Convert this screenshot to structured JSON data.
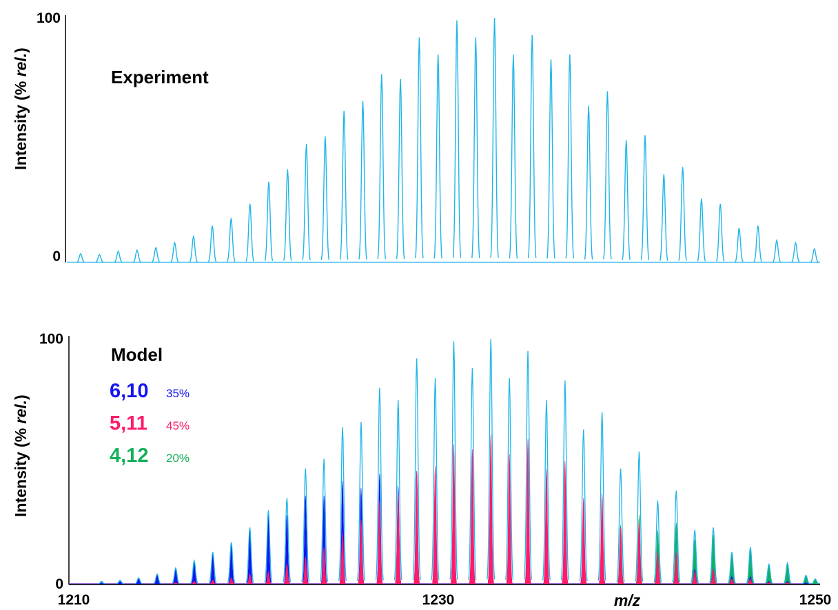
{
  "chart_data": [
    {
      "type": "line",
      "panel_label": "Experiment",
      "ylabel_main": "Intensity (% ",
      "ylabel_italic": "rel.",
      "ylabel_end": ")",
      "y_ticks": [
        "0",
        "100"
      ],
      "xlim": [
        1210,
        1250
      ],
      "ylim": [
        0,
        100
      ],
      "grid": false,
      "series": [
        {
          "color": "#1fb5e8",
          "peaks_mz": [
            1210.5,
            1211.5,
            1212.5,
            1213.5,
            1214.5,
            1215.5,
            1216.5,
            1217.5,
            1218.5,
            1219.5,
            1220.5,
            1221.5,
            1222.5,
            1223.5,
            1224.5,
            1225.5,
            1226.5,
            1227.5,
            1228.5,
            1229.5,
            1230.5,
            1231.5,
            1232.5,
            1233.5,
            1234.5,
            1235.5,
            1236.5,
            1237.5,
            1238.5,
            1239.5,
            1240.5,
            1241.5,
            1242.5,
            1243.5,
            1244.5,
            1245.5,
            1246.5,
            1247.5,
            1248.5,
            1249.5
          ],
          "intensity": [
            3.5,
            3.2,
            4.5,
            5,
            6,
            8,
            10.5,
            15,
            18,
            24,
            33,
            38,
            48.5,
            51.5,
            62,
            66,
            77,
            75,
            92,
            85,
            99,
            92,
            100,
            85,
            93,
            83,
            85,
            64,
            70,
            50,
            52,
            36,
            39,
            26,
            24,
            14,
            15,
            9,
            8,
            5.5
          ]
        }
      ]
    },
    {
      "type": "area",
      "panel_label": "Model",
      "ylabel_main": "Intensity (% ",
      "ylabel_italic": "rel.",
      "ylabel_end": ")",
      "y_ticks": [
        "0",
        "100"
      ],
      "x_ticks": [
        "1210",
        "1230",
        "1250"
      ],
      "xlabel": "m/z",
      "xlim": [
        1210,
        1250
      ],
      "ylim": [
        0,
        100
      ],
      "grid": false,
      "legend": [
        {
          "key": "6,10",
          "pct": "35%",
          "color": "#1515ee"
        },
        {
          "key": "5,11",
          "pct": "45%",
          "color": "#ff1a6b"
        },
        {
          "key": "4,12",
          "pct": "20%",
          "color": "#13b05a"
        }
      ],
      "peaks_mz": [
        1211.5,
        1212.5,
        1213.5,
        1214.5,
        1215.5,
        1216.5,
        1217.5,
        1218.5,
        1219.5,
        1220.5,
        1221.5,
        1222.5,
        1223.5,
        1224.5,
        1225.5,
        1226.5,
        1227.5,
        1228.5,
        1229.5,
        1230.5,
        1231.5,
        1232.5,
        1233.5,
        1234.5,
        1235.5,
        1236.5,
        1237.5,
        1238.5,
        1239.5,
        1240.5,
        1241.5,
        1242.5,
        1243.5,
        1244.5,
        1245.5,
        1246.5,
        1247.5,
        1248.5,
        1249.5,
        1250
      ],
      "series": [
        {
          "name": "total",
          "color": "#1fb5e8",
          "intensity": [
            1,
            1.5,
            2.5,
            4,
            6.5,
            9.5,
            13,
            17,
            23,
            30,
            35,
            47,
            51,
            64,
            66,
            80,
            75,
            92,
            84,
            99,
            88,
            100,
            84,
            95,
            75,
            83,
            63,
            70,
            47,
            54,
            34,
            38,
            22,
            23,
            13,
            15,
            8,
            8.5,
            3.5,
            2
          ]
        },
        {
          "name": "green",
          "color": "#13b05a",
          "intensity": [
            0,
            0,
            0,
            0,
            0,
            0,
            0,
            0,
            0,
            0,
            0,
            0.5,
            1,
            1.5,
            2,
            3,
            4,
            6,
            8,
            10,
            12,
            14,
            15,
            17,
            18,
            21,
            22,
            24,
            24,
            28,
            22,
            25,
            18,
            20,
            12,
            14,
            8,
            8,
            3.5,
            2
          ]
        },
        {
          "name": "blue",
          "color": "#1515ee",
          "intensity": [
            0.5,
            1,
            2,
            3.5,
            6,
            9,
            12,
            16,
            22,
            28,
            28,
            36,
            36,
            42,
            39,
            45,
            40,
            46,
            37,
            47,
            37,
            43,
            33,
            37,
            28,
            32,
            23,
            24,
            16,
            17,
            10,
            10,
            6,
            6,
            3,
            3,
            1,
            1,
            0.5,
            0
          ]
        },
        {
          "name": "pink",
          "color": "#ff1a6b",
          "intensity": [
            0,
            0,
            0,
            0,
            0.5,
            1,
            1.5,
            2.5,
            4,
            5,
            8,
            11,
            15,
            21,
            26,
            34,
            37,
            46,
            48,
            57,
            55,
            61,
            53,
            59,
            47,
            50,
            35,
            37,
            23,
            25,
            13,
            13,
            5,
            6,
            2,
            2,
            0.5,
            0.5,
            0,
            0
          ]
        }
      ]
    }
  ]
}
